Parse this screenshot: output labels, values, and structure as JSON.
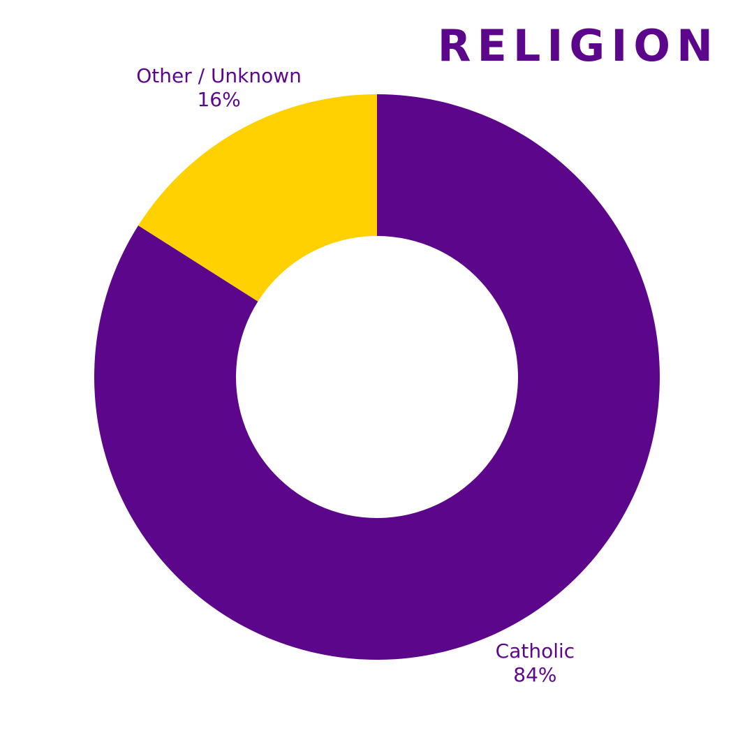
{
  "chart_data": {
    "type": "donut",
    "title": "RELIGION",
    "categories": [
      "Catholic",
      "Other / Unknown"
    ],
    "values": [
      84,
      16
    ],
    "value_labels": [
      "84%",
      "16%"
    ],
    "colors": [
      "#5c068c",
      "#ffd100"
    ]
  }
}
